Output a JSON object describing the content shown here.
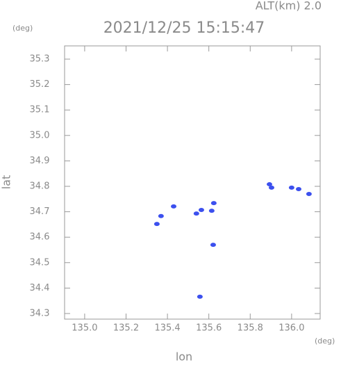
{
  "chart_data": {
    "type": "scatter",
    "title": "2021/12/25 15:15:47",
    "subtitle": "ALT(km) 2.0",
    "x_label": "lon",
    "y_label": "lat",
    "x_unit": "(deg)",
    "y_unit": "(deg)",
    "x": [
      135.893,
      135.903,
      136.0,
      136.034,
      136.084,
      135.54,
      135.564,
      135.614,
      135.624,
      135.43,
      135.369,
      135.349,
      135.621,
      135.557
    ],
    "series": [
      {
        "color": "#3c50ee",
        "values": [
          34.808,
          34.795,
          34.795,
          34.789,
          34.77,
          34.693,
          34.707,
          34.704,
          34.734,
          34.721,
          34.683,
          34.652,
          34.57,
          34.366
        ]
      }
    ],
    "xlim": [
      134.903,
      136.138
    ],
    "ylim": [
      34.278,
      35.352
    ],
    "xticks": [
      {
        "value": 135.0,
        "label": "135.0"
      },
      135.2,
      135.4,
      135.6,
      135.8,
      {
        "value": 136.0,
        "label": "136.0"
      }
    ],
    "yticks": [
      34.3,
      34.4,
      34.5,
      34.6,
      34.7,
      34.8,
      34.9,
      {
        "value": 35.0,
        "label": "35.0"
      },
      35.1,
      35.2,
      35.3
    ]
  }
}
